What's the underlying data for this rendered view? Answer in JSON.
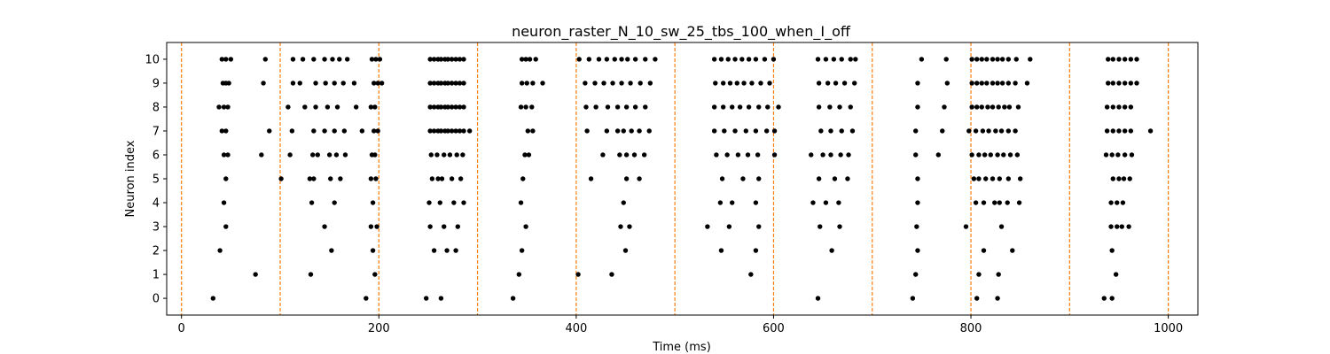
{
  "chart_data": {
    "type": "scatter",
    "title": "neuron_raster_N_10_sw_25_tbs_100_when_I_off",
    "xlabel": "Time (ms)",
    "ylabel": "Neuron index",
    "xlim": [
      -15,
      1030
    ],
    "ylim": [
      -0.7,
      10.7
    ],
    "xticks": [
      0,
      200,
      400,
      600,
      800,
      1000
    ],
    "yticks": [
      0,
      1,
      2,
      3,
      4,
      5,
      6,
      7,
      8,
      9,
      10
    ],
    "vlines": {
      "x": [
        0,
        100,
        200,
        300,
        400,
        500,
        600,
        700,
        800,
        900,
        1000
      ],
      "color": "#ff7f0e",
      "style": "dashed"
    },
    "marker_color": "#000000",
    "series": [
      {
        "neuron": 0,
        "x": [
          32,
          187,
          248,
          263,
          336,
          645,
          741,
          806,
          827,
          935,
          943
        ]
      },
      {
        "neuron": 1,
        "x": [
          75,
          131,
          196,
          342,
          402,
          436,
          577,
          744,
          808,
          828,
          947
        ]
      },
      {
        "neuron": 2,
        "x": [
          39,
          152,
          194,
          256,
          269,
          278,
          345,
          450,
          547,
          582,
          659,
          746,
          813,
          842,
          943
        ]
      },
      {
        "neuron": 3,
        "x": [
          45,
          145,
          192,
          198,
          252,
          266,
          280,
          349,
          445,
          454,
          533,
          555,
          585,
          647,
          667,
          745,
          795,
          831,
          942,
          948,
          953,
          960
        ]
      },
      {
        "neuron": 4,
        "x": [
          43,
          132,
          155,
          194,
          251,
          262,
          276,
          286,
          344,
          448,
          546,
          558,
          582,
          640,
          653,
          666,
          746,
          805,
          813,
          824,
          829,
          837,
          849,
          942,
          948,
          954
        ]
      },
      {
        "neuron": 5,
        "x": [
          45,
          101,
          130,
          134,
          151,
          161,
          192,
          197,
          254,
          260,
          264,
          274,
          283,
          346,
          415,
          451,
          464,
          548,
          569,
          585,
          646,
          662,
          675,
          746,
          803,
          808,
          815,
          822,
          829,
          838,
          850,
          944,
          950,
          955,
          961
        ]
      },
      {
        "neuron": 6,
        "x": [
          43,
          47,
          81,
          110,
          133,
          138,
          150,
          157,
          166,
          193,
          196,
          253,
          259,
          266,
          272,
          279,
          285,
          348,
          352,
          427,
          444,
          451,
          459,
          469,
          542,
          553,
          564,
          574,
          584,
          601,
          638,
          650,
          658,
          668,
          676,
          744,
          767,
          801,
          808,
          814,
          820,
          827,
          833,
          840,
          847,
          937,
          943,
          949,
          956,
          963
        ]
      },
      {
        "neuron": 7,
        "x": [
          41,
          45,
          89,
          112,
          134,
          145,
          155,
          165,
          183,
          195,
          199,
          252,
          256,
          260,
          263,
          267,
          270,
          274,
          278,
          282,
          286,
          292,
          351,
          356,
          411,
          431,
          442,
          448,
          456,
          464,
          474,
          540,
          550,
          561,
          572,
          582,
          593,
          601,
          648,
          658,
          669,
          680,
          744,
          771,
          798,
          805,
          812,
          818,
          825,
          831,
          838,
          845,
          938,
          944,
          950,
          956,
          962,
          982
        ]
      },
      {
        "neuron": 8,
        "x": [
          38,
          43,
          47,
          108,
          125,
          136,
          148,
          158,
          177,
          192,
          196,
          252,
          256,
          260,
          263,
          267,
          270,
          274,
          278,
          282,
          286,
          344,
          349,
          355,
          410,
          420,
          432,
          442,
          451,
          460,
          470,
          540,
          549,
          558,
          566,
          575,
          585,
          594,
          605,
          646,
          657,
          667,
          678,
          746,
          773,
          801,
          806,
          811,
          817,
          822,
          828,
          834,
          839,
          848,
          938,
          944,
          950,
          956,
          962
        ]
      },
      {
        "neuron": 9,
        "x": [
          42,
          45,
          48,
          83,
          113,
          120,
          136,
          146,
          155,
          164,
          175,
          195,
          199,
          203,
          252,
          256,
          260,
          263,
          267,
          270,
          274,
          278,
          282,
          286,
          345,
          350,
          356,
          366,
          409,
          419,
          428,
          437,
          446,
          455,
          465,
          475,
          541,
          549,
          556,
          563,
          570,
          578,
          587,
          596,
          646,
          655,
          663,
          672,
          682,
          746,
          776,
          801,
          806,
          811,
          816,
          822,
          827,
          832,
          838,
          845,
          857,
          939,
          944,
          950,
          956,
          962,
          968
        ]
      },
      {
        "neuron": 10,
        "x": [
          41,
          45,
          50,
          85,
          113,
          123,
          134,
          145,
          153,
          160,
          168,
          193,
          197,
          201,
          252,
          256,
          260,
          263,
          267,
          270,
          274,
          278,
          282,
          286,
          345,
          349,
          353,
          359,
          403,
          413,
          423,
          431,
          439,
          446,
          452,
          460,
          470,
          480,
          540,
          547,
          554,
          561,
          568,
          575,
          582,
          591,
          600,
          645,
          653,
          661,
          669,
          678,
          683,
          750,
          775,
          801,
          806,
          811,
          816,
          822,
          827,
          832,
          838,
          846,
          860,
          939,
          944,
          950,
          956,
          962,
          968
        ]
      }
    ]
  }
}
